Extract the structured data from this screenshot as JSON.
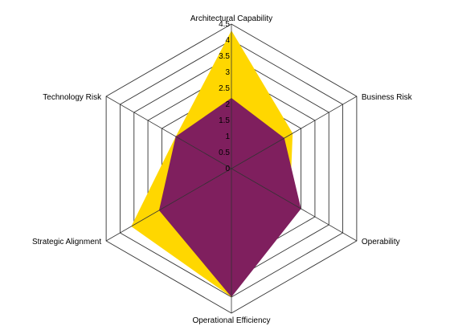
{
  "chart_data": {
    "type": "radar",
    "axes": [
      "Architectural Capability",
      "Business Risk",
      "Operability",
      "Operational Efficiency",
      "Strategic Alignment",
      "Technology Risk"
    ],
    "ticks": [
      "0",
      "0.5",
      "1",
      "1.5",
      "2",
      "2.5",
      "3",
      "3.5",
      "4",
      "4.5"
    ],
    "range": [
      0,
      4.5
    ],
    "grid": true,
    "legend": "none",
    "series": [
      {
        "color": "#ffd700",
        "values": [
          4.3,
          2.2,
          2.1,
          4.0,
          3.6,
          2.0
        ]
      },
      {
        "color": "#7f1f5e",
        "values": [
          2.2,
          1.9,
          2.5,
          4.0,
          2.6,
          2.0
        ]
      }
    ]
  }
}
